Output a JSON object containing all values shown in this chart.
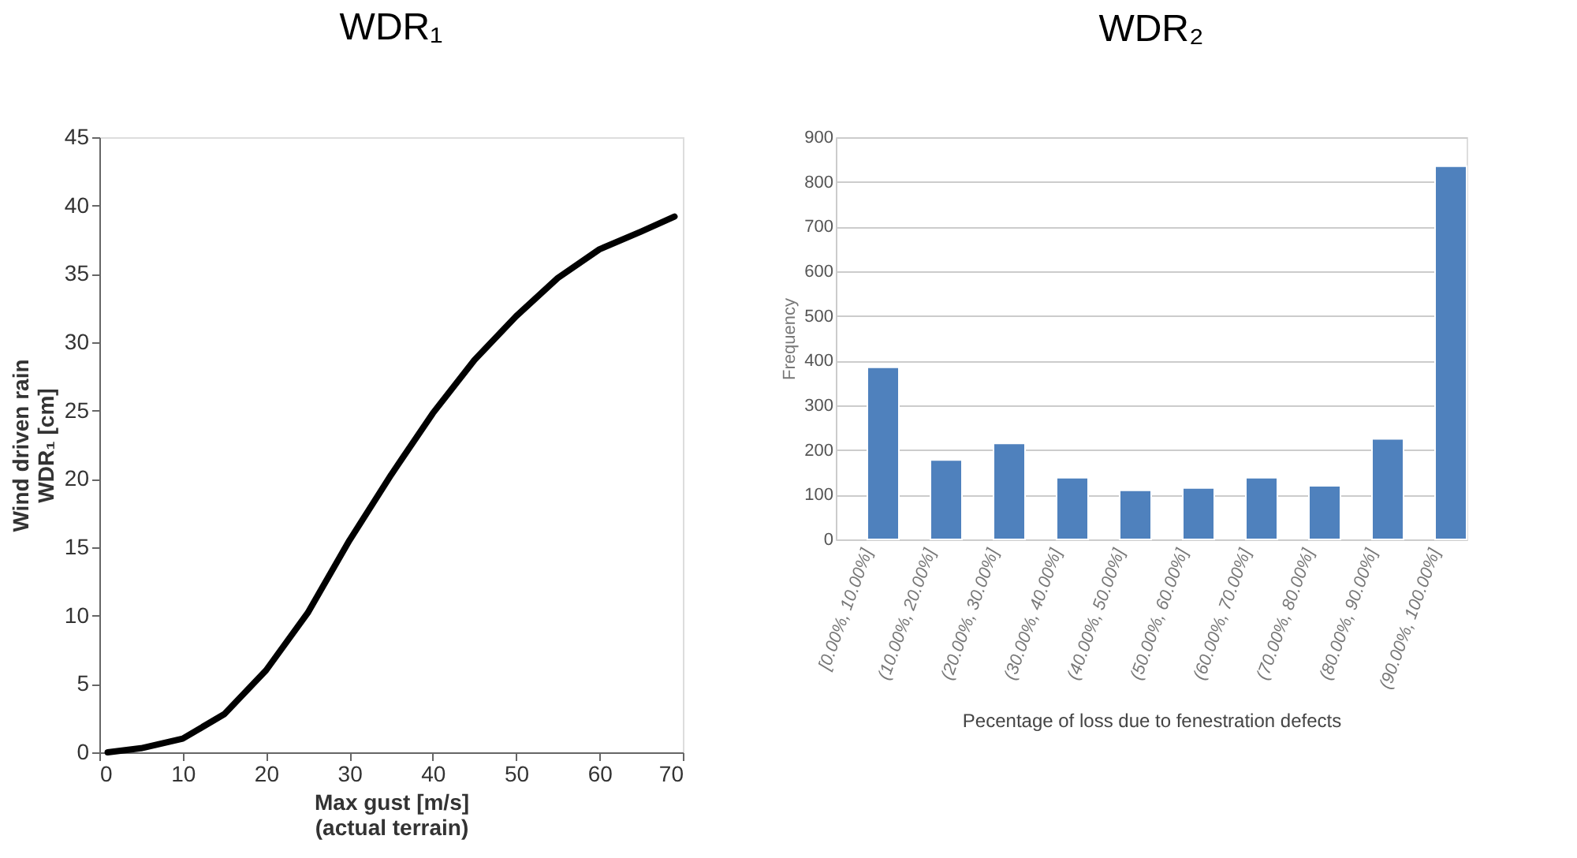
{
  "chart_data": [
    {
      "type": "line",
      "title": "WDR₁",
      "xlabel": "Max gust [m/s]\n(actual terrain)",
      "ylabel": "Wind driven rain\nWDR₁ [cm]",
      "x": [
        1,
        5,
        10,
        15,
        20,
        25,
        30,
        35,
        40,
        45,
        50,
        55,
        60,
        65,
        69
      ],
      "series": [
        {
          "color": "#000000",
          "values": [
            0,
            0.3,
            1,
            2.8,
            6,
            10.2,
            15.5,
            20.3,
            24.8,
            28.7,
            31.9,
            34.7,
            36.8,
            38.1,
            39.2
          ]
        }
      ],
      "xlim": [
        0,
        70
      ],
      "xticks": [
        0,
        10,
        20,
        30,
        40,
        50,
        60,
        70
      ],
      "ylim": [
        0,
        45
      ],
      "yticks": [
        0,
        5,
        10,
        15,
        20,
        25,
        30,
        35,
        40,
        45
      ],
      "grid": false,
      "line_style": "solid",
      "marker": "none"
    },
    {
      "type": "bar",
      "title": "WDR₂",
      "xlabel": "Pecentage of loss due to fenestration defects",
      "ylabel": "Frequency",
      "categories": [
        "[0.00%, 10.00%]",
        "(10.00%, 20.00%]",
        "(20.00%, 30.00%]",
        "(30.00%, 40.00%]",
        "(40.00%, 50.00%]",
        "(50.00%, 60.00%]",
        "(60.00%, 70.00%]",
        "(70.00%, 80.00%]",
        "(80.00%, 90.00%]",
        "(90.00%, 100.00%]"
      ],
      "series": [
        {
          "color": "#4f81bd",
          "values": [
            385,
            178,
            215,
            138,
            110,
            115,
            138,
            120,
            225,
            835
          ]
        }
      ],
      "ylim": [
        0,
        900
      ],
      "yticks": [
        0,
        100,
        200,
        300,
        400,
        500,
        600,
        700,
        800,
        900
      ],
      "grid": "y"
    }
  ]
}
